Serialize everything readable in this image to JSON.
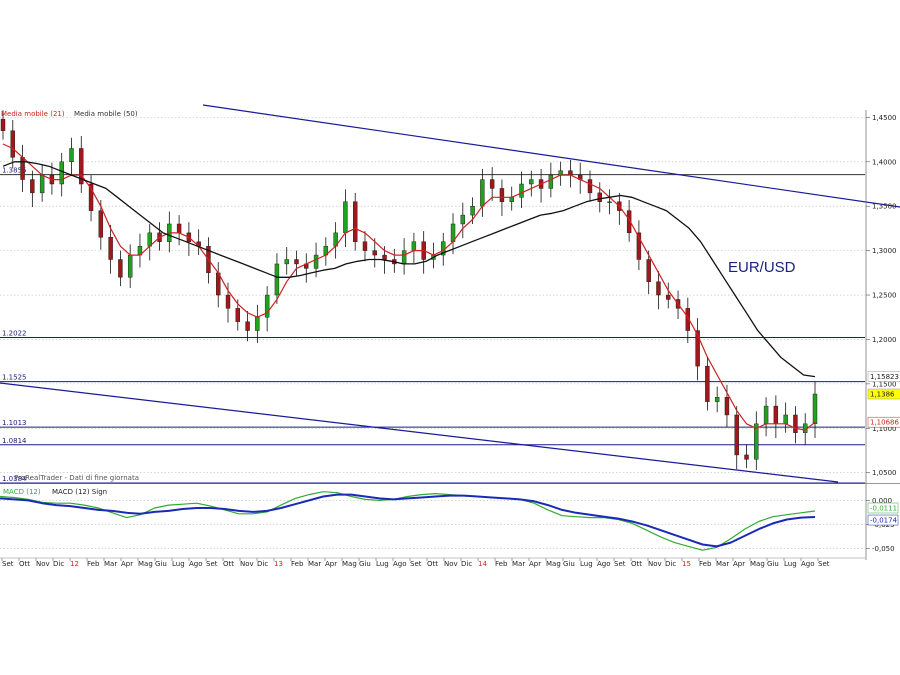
{
  "chart_data": [
    {
      "type": "candlestick",
      "instrument": "EUR/USD",
      "legend": [
        {
          "label": "Media mobile (21)",
          "color": "#cc2222"
        },
        {
          "label": "Media mobile (50)",
          "color": "#111111"
        }
      ],
      "source_note": "ProRealTrader - Dati di fine giornata",
      "ylim": [
        1.0384,
        1.462
      ],
      "y_ticks": [
        "1,4500",
        "1,4000",
        "1,3500",
        "1,3000",
        "1,2500",
        "1,2000",
        "1,1500",
        "1,1000",
        "1,0500"
      ],
      "y_tick_values": [
        1.45,
        1.4,
        1.35,
        1.3,
        1.25,
        1.2,
        1.15,
        1.1,
        1.05
      ],
      "horizontal_levels": [
        {
          "label": "1.3855",
          "value": 1.3855,
          "color": "#333333"
        },
        {
          "label": "1.2022",
          "value": 1.2022,
          "color": "#1a1a8c"
        },
        {
          "label": "1.1525",
          "value": 1.1525,
          "color": "#1a1a8c"
        },
        {
          "label": "1.1013",
          "value": 1.1013,
          "color": "#1a1a8c"
        },
        {
          "label": "1.0814",
          "value": 1.0814,
          "color": "#1a1a8c"
        },
        {
          "label": "1.0384",
          "value": 1.0384,
          "color": "#1a1a8c"
        }
      ],
      "price_tags": [
        {
          "label": "1,15823",
          "value": 1.15823,
          "bg": "#ffffff",
          "fg": "#222222"
        },
        {
          "label": "1,1386",
          "value": 1.1386,
          "bg": "#ffff00",
          "fg": "#222222"
        },
        {
          "label": "1,10686",
          "value": 1.10686,
          "bg": "#ffffff",
          "fg": "#cc2222"
        }
      ],
      "trendlines": [
        {
          "from": [
            "2011-06",
            1.4646
          ],
          "to": [
            "2016-01",
            1.352
          ],
          "color": "#1a1a99"
        },
        {
          "from": [
            "2011-07",
            1.1525
          ],
          "to": [
            "2015-09",
            1.0384
          ],
          "color": "#1a1a99"
        }
      ],
      "x_labels": [
        "Set",
        "Ott",
        "Nov",
        "Dic",
        "12",
        "Feb",
        "Mar",
        "Apr",
        "Mag",
        "Giu",
        "Lug",
        "Ago",
        "Set",
        "Ott",
        "Nov",
        "Dic",
        "13",
        "Feb",
        "Mar",
        "Apr",
        "Mag",
        "Giu",
        "Lug",
        "Ago",
        "Set",
        "Ott",
        "Nov",
        "Dic",
        "14",
        "Feb",
        "Mar",
        "Apr",
        "Mag",
        "Giu",
        "Lug",
        "Ago",
        "Set",
        "Ott",
        "Nov",
        "Dic",
        "15",
        "Feb",
        "Mar",
        "Apr",
        "Mag",
        "Giu",
        "Lug",
        "Ago",
        "Set"
      ],
      "x_label_colors": {
        "12": "#cc2222",
        "13": "#cc2222",
        "14": "#cc2222",
        "15": "#cc2222"
      },
      "series": [
        {
          "name": "EUR/USD",
          "close": [
            1.435,
            1.405,
            1.38,
            1.365,
            1.385,
            1.375,
            1.4,
            1.415,
            1.375,
            1.345,
            1.315,
            1.29,
            1.27,
            1.295,
            1.305,
            1.32,
            1.31,
            1.33,
            1.32,
            1.31,
            1.305,
            1.275,
            1.25,
            1.235,
            1.22,
            1.21,
            1.225,
            1.25,
            1.285,
            1.29,
            1.285,
            1.28,
            1.295,
            1.305,
            1.32,
            1.355,
            1.31,
            1.3,
            1.295,
            1.29,
            1.285,
            1.3,
            1.31,
            1.29,
            1.295,
            1.31,
            1.33,
            1.34,
            1.35,
            1.38,
            1.37,
            1.355,
            1.36,
            1.375,
            1.38,
            1.37,
            1.385,
            1.39,
            1.385,
            1.38,
            1.365,
            1.355,
            1.355,
            1.345,
            1.32,
            1.29,
            1.265,
            1.25,
            1.245,
            1.235,
            1.21,
            1.17,
            1.13,
            1.135,
            1.115,
            1.07,
            1.065,
            1.105,
            1.125,
            1.105,
            1.115,
            1.095,
            1.105,
            1.1386
          ]
        },
        {
          "name": "Media mobile (21)",
          "values": [
            1.42,
            1.415,
            1.405,
            1.395,
            1.385,
            1.38,
            1.38,
            1.385,
            1.385,
            1.37,
            1.35,
            1.325,
            1.305,
            1.295,
            1.295,
            1.305,
            1.315,
            1.32,
            1.32,
            1.315,
            1.305,
            1.29,
            1.275,
            1.255,
            1.24,
            1.23,
            1.225,
            1.23,
            1.245,
            1.265,
            1.28,
            1.285,
            1.29,
            1.295,
            1.305,
            1.32,
            1.325,
            1.32,
            1.31,
            1.3,
            1.295,
            1.295,
            1.3,
            1.3,
            1.295,
            1.3,
            1.31,
            1.325,
            1.335,
            1.35,
            1.36,
            1.36,
            1.36,
            1.365,
            1.37,
            1.375,
            1.38,
            1.385,
            1.385,
            1.38,
            1.375,
            1.37,
            1.36,
            1.35,
            1.335,
            1.315,
            1.295,
            1.275,
            1.255,
            1.24,
            1.225,
            1.205,
            1.18,
            1.16,
            1.14,
            1.12,
            1.105,
            1.1,
            1.105,
            1.105,
            1.105,
            1.1,
            1.098,
            1.1069
          ]
        },
        {
          "name": "Media mobile (50)",
          "values": [
            1.395,
            1.4,
            1.4,
            1.398,
            1.395,
            1.39,
            1.385,
            1.38,
            1.375,
            1.37,
            1.36,
            1.35,
            1.34,
            1.33,
            1.32,
            1.315,
            1.31,
            1.305,
            1.3,
            1.295,
            1.29,
            1.285,
            1.28,
            1.275,
            1.27,
            1.27,
            1.272,
            1.275,
            1.278,
            1.28,
            1.285,
            1.288,
            1.29,
            1.29,
            1.288,
            1.285,
            1.285,
            1.288,
            1.295,
            1.3,
            1.305,
            1.31,
            1.315,
            1.32,
            1.325,
            1.33,
            1.335,
            1.34,
            1.342,
            1.345,
            1.35,
            1.355,
            1.358,
            1.36,
            1.362,
            1.36,
            1.355,
            1.35,
            1.345,
            1.335,
            1.325,
            1.31,
            1.29,
            1.27,
            1.25,
            1.23,
            1.21,
            1.195,
            1.18,
            1.17,
            1.16,
            1.1582
          ]
        }
      ]
    },
    {
      "type": "line",
      "legend": [
        {
          "label": "MACD (12)",
          "color": "#33aa33"
        },
        {
          "label": "MACD (12) Sign",
          "color": "#1a2ab8"
        }
      ],
      "ylim": [
        -0.058,
        0.016
      ],
      "y_ticks": [
        "0,000",
        "-0,025",
        "-0,050"
      ],
      "y_tick_values": [
        0.0,
        -0.025,
        -0.05
      ],
      "price_tags": [
        {
          "label": "-0,0111",
          "value": -0.0111,
          "fg": "#33aa33"
        },
        {
          "label": "-0,0174",
          "value": -0.0174,
          "fg": "#1a2ab8"
        }
      ],
      "series": [
        {
          "name": "MACD (12)",
          "values": [
            0.004,
            0.003,
            0.001,
            -0.002,
            -0.003,
            -0.003,
            -0.005,
            -0.008,
            -0.013,
            -0.018,
            -0.015,
            -0.008,
            -0.005,
            -0.004,
            -0.003,
            -0.006,
            -0.01,
            -0.014,
            -0.014,
            -0.012,
            -0.005,
            0.002,
            0.006,
            0.009,
            0.008,
            0.004,
            0.001,
            0.0,
            0.001,
            0.004,
            0.006,
            0.007,
            0.006,
            0.005,
            0.004,
            0.003,
            0.002,
            0.001,
            -0.003,
            -0.01,
            -0.016,
            -0.017,
            -0.018,
            -0.018,
            -0.02,
            -0.024,
            -0.031,
            -0.038,
            -0.044,
            -0.048,
            -0.052,
            -0.049,
            -0.04,
            -0.03,
            -0.022,
            -0.017,
            -0.015,
            -0.013,
            -0.0111
          ]
        },
        {
          "name": "MACD (12) Sign",
          "values": [
            0.002,
            0.001,
            0.0,
            -0.003,
            -0.005,
            -0.006,
            -0.008,
            -0.01,
            -0.011,
            -0.013,
            -0.014,
            -0.012,
            -0.011,
            -0.009,
            -0.008,
            -0.008,
            -0.009,
            -0.011,
            -0.012,
            -0.011,
            -0.008,
            -0.004,
            0.0,
            0.004,
            0.006,
            0.006,
            0.004,
            0.002,
            0.001,
            0.002,
            0.003,
            0.004,
            0.005,
            0.005,
            0.004,
            0.003,
            0.002,
            0.001,
            -0.001,
            -0.005,
            -0.01,
            -0.013,
            -0.015,
            -0.017,
            -0.019,
            -0.022,
            -0.026,
            -0.031,
            -0.036,
            -0.041,
            -0.046,
            -0.048,
            -0.044,
            -0.037,
            -0.03,
            -0.024,
            -0.02,
            -0.018,
            -0.0174
          ]
        }
      ]
    }
  ]
}
